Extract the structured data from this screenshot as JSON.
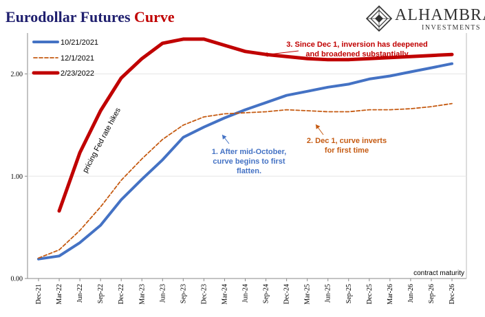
{
  "header": {
    "title_main": "Eurodollar Futures",
    "title_accent": "Curve",
    "logo_name": "ALHAMBRA",
    "logo_sub": "INVESTMENTS"
  },
  "colors": {
    "title": "#1f1f6e",
    "accent": "#c00000",
    "series_blue": "#4472c4",
    "series_orange": "#c55a11",
    "series_red": "#c00000"
  },
  "chart_data": {
    "type": "line",
    "xlabel": "contract maturity",
    "ylim": [
      0,
      2.4
    ],
    "yticks": [
      "0.00",
      "1.00",
      "2.00"
    ],
    "grid": "horizontal",
    "legend_position": "top-left",
    "categories": [
      "Dec-21",
      "Mar-22",
      "Jun-22",
      "Sep-22",
      "Dec-22",
      "Mar-23",
      "Jun-23",
      "Sep-23",
      "Dec-23",
      "Mar-24",
      "Jun-24",
      "Sep-24",
      "Dec-24",
      "Mar-25",
      "Jun-25",
      "Sep-25",
      "Dec-25",
      "Mar-26",
      "Jun-26",
      "Sep-26",
      "Dec-26"
    ],
    "series": [
      {
        "name": "10/21/2021",
        "color": "#4472c4",
        "style": "solid",
        "values": [
          0.19,
          0.22,
          0.35,
          0.52,
          0.77,
          0.97,
          1.16,
          1.38,
          1.48,
          1.57,
          1.65,
          1.72,
          1.79,
          1.83,
          1.87,
          1.9,
          1.95,
          1.98,
          2.02,
          2.06,
          2.1
        ]
      },
      {
        "name": "12/1/2021",
        "color": "#c55a11",
        "style": "dashed",
        "values": [
          0.2,
          0.28,
          0.47,
          0.7,
          0.96,
          1.17,
          1.36,
          1.5,
          1.58,
          1.61,
          1.62,
          1.63,
          1.65,
          1.64,
          1.63,
          1.63,
          1.65,
          1.65,
          1.66,
          1.68,
          1.71
        ]
      },
      {
        "name": "2/23/2022",
        "color": "#c00000",
        "style": "thick",
        "values": [
          null,
          0.66,
          1.23,
          1.64,
          1.96,
          2.15,
          2.3,
          2.34,
          2.34,
          2.28,
          2.22,
          2.19,
          2.17,
          2.15,
          2.14,
          2.14,
          2.15,
          2.16,
          2.17,
          2.18,
          2.19
        ]
      }
    ],
    "annotations": [
      {
        "lines": [
          "pricing Fed rate hikes"
        ],
        "color": "#000000"
      },
      {
        "lines": [
          "1. After mid-October,",
          "curve begins to first",
          "flatten."
        ],
        "color": "#4472c4"
      },
      {
        "lines": [
          "2. Dec 1, curve inverts",
          "for first time"
        ],
        "color": "#c55a11"
      },
      {
        "lines": [
          "3. Since Dec 1, inversion has deepened",
          "and broadened substantially"
        ],
        "color": "#c00000"
      }
    ]
  }
}
